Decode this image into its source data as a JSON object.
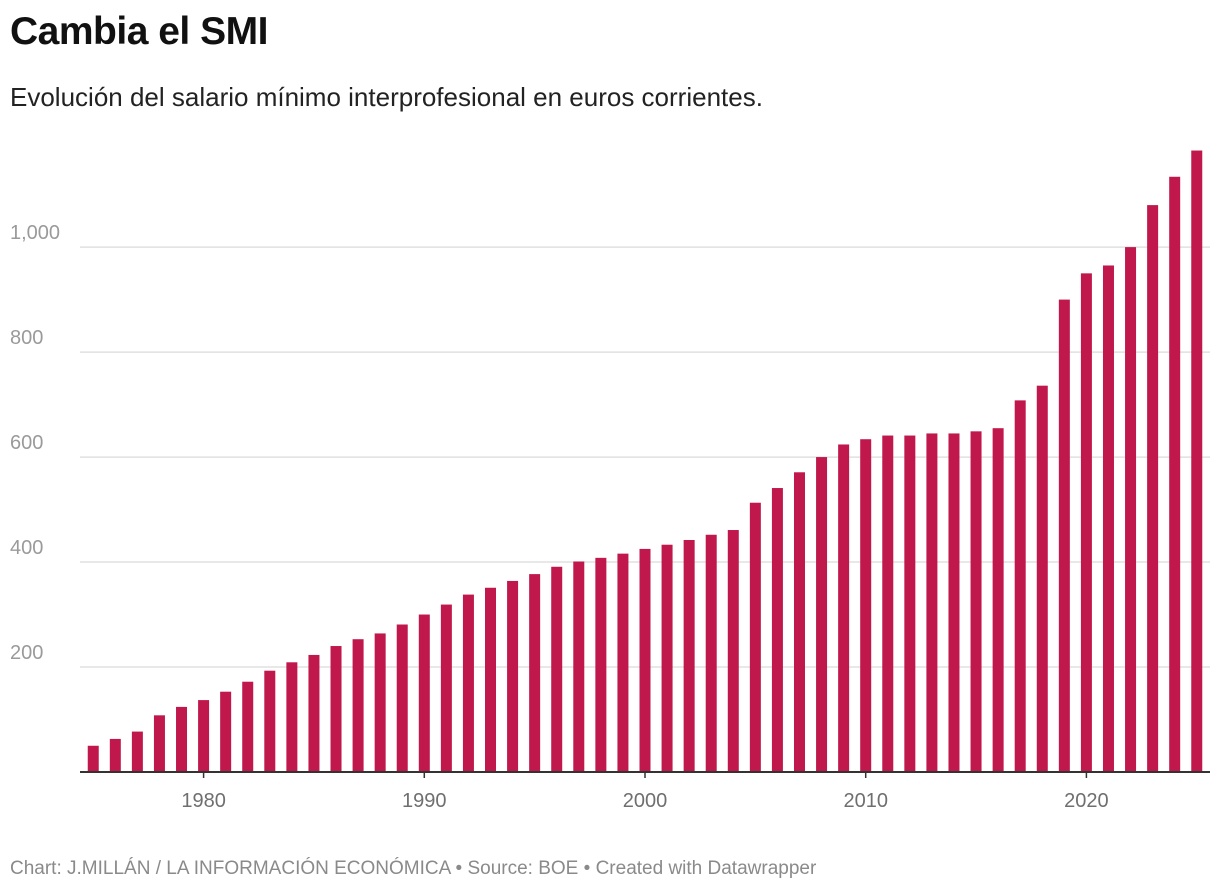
{
  "title": "Cambia el SMI",
  "subtitle": "Evolución del salario mínimo interprofesional en euros corrientes.",
  "footer": {
    "credit": "Chart: J.MILLÁN / LA INFORMACIÓN ECONÓMICA",
    "separator": "•",
    "source": "Source: BOE",
    "tool": "Created with Datawrapper"
  },
  "colors": {
    "bar": "#c0184c",
    "grid": "#e1e1e1",
    "baseline": "#333333"
  },
  "chart_data": {
    "type": "bar",
    "title": "Cambia el SMI",
    "subtitle": "Evolución del salario mínimo interprofesional en euros corrientes.",
    "xlabel": "",
    "ylabel": "",
    "ylim": [
      0,
      1185
    ],
    "xlim": [
      1974.4,
      2025.6
    ],
    "grid": true,
    "legend": "none",
    "yticks": [
      {
        "value": 200,
        "label": "200"
      },
      {
        "value": 400,
        "label": "400"
      },
      {
        "value": 600,
        "label": "600"
      },
      {
        "value": 800,
        "label": "800"
      },
      {
        "value": 1000,
        "label": "1,000"
      }
    ],
    "xticks": [
      {
        "value": 1980,
        "label": "1980"
      },
      {
        "value": 1990,
        "label": "1990"
      },
      {
        "value": 2000,
        "label": "2000"
      },
      {
        "value": 2010,
        "label": "2010"
      },
      {
        "value": 2020,
        "label": "2020"
      }
    ],
    "categories": [
      1975,
      1976,
      1977,
      1978,
      1979,
      1980,
      1981,
      1982,
      1983,
      1984,
      1985,
      1986,
      1987,
      1988,
      1989,
      1990,
      1991,
      1992,
      1993,
      1994,
      1995,
      1996,
      1997,
      1998,
      1999,
      2000,
      2001,
      2002,
      2003,
      2004,
      2005,
      2006,
      2007,
      2008,
      2009,
      2010,
      2011,
      2012,
      2013,
      2014,
      2015,
      2016,
      2017,
      2018,
      2019,
      2020,
      2021,
      2022,
      2023,
      2024,
      2025
    ],
    "values": [
      50,
      63,
      77,
      108,
      124,
      137,
      153,
      172,
      193,
      209,
      223,
      240,
      253,
      264,
      281,
      300,
      319,
      338,
      351,
      364,
      377,
      391,
      401,
      408,
      416,
      425,
      433,
      442,
      452,
      461,
      513,
      541,
      571,
      600,
      624,
      634,
      641,
      641,
      645,
      645,
      649,
      655,
      708,
      736,
      900,
      950,
      965,
      1000,
      1080,
      1134,
      1184
    ]
  }
}
